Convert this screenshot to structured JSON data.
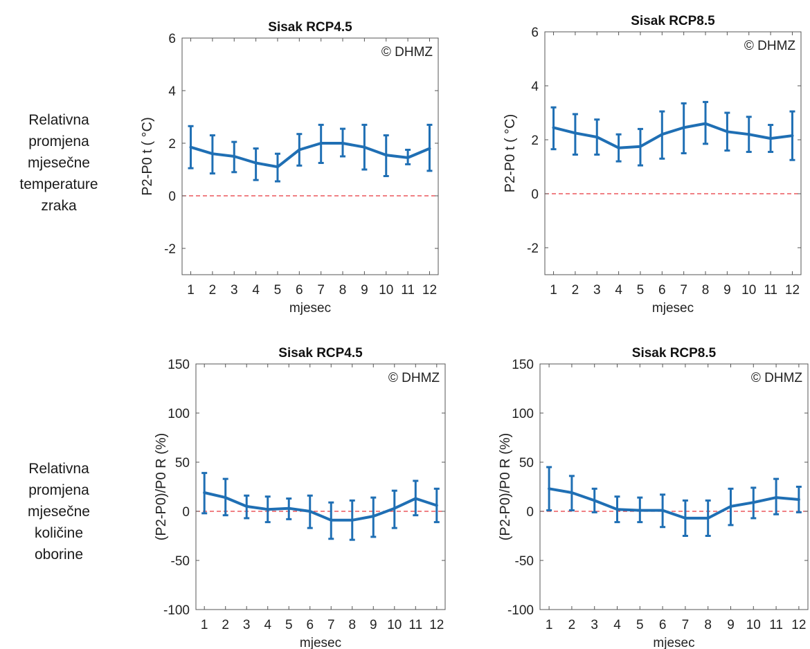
{
  "row_labels": {
    "temperature": "Relativna\npromjena\nmjesečne\ntemperature\nzraka",
    "precipitation": "Relativna\npromjena\nmjesečne\nkoličine\noborine"
  },
  "colors": {
    "series": "#1f6fb4",
    "reference": "#e8353a",
    "axis": "#555555"
  },
  "chart_data": [
    {
      "type": "line",
      "title": "Sisak RCP4.5",
      "credit": "© DHMZ",
      "xlabel": "mjesec",
      "ylabel": "P2-P0 t ( °C)",
      "x": [
        1,
        2,
        3,
        4,
        5,
        6,
        7,
        8,
        9,
        10,
        11,
        12
      ],
      "xticks": [
        "1",
        "2",
        "3",
        "4",
        "5",
        "6",
        "7",
        "8",
        "9",
        "10",
        "11",
        "12"
      ],
      "xlim": [
        0.6,
        12.4
      ],
      "ylim": [
        -3,
        6
      ],
      "yticks": [
        -2,
        0,
        2,
        4,
        6
      ],
      "reference_line": 0,
      "series": [
        {
          "values": [
            1.85,
            1.6,
            1.5,
            1.25,
            1.1,
            1.75,
            2.0,
            2.0,
            1.85,
            1.55,
            1.45,
            1.8
          ],
          "lower": [
            1.05,
            0.85,
            0.9,
            0.6,
            0.55,
            1.15,
            1.25,
            1.5,
            1.0,
            0.75,
            1.2,
            0.95
          ],
          "upper": [
            2.65,
            2.3,
            2.05,
            1.8,
            1.6,
            2.35,
            2.7,
            2.55,
            2.7,
            2.3,
            1.75,
            2.7
          ]
        }
      ]
    },
    {
      "type": "line",
      "title": "Sisak RCP8.5",
      "credit": "© DHMZ",
      "xlabel": "mjesec",
      "ylabel": "P2-P0 t ( °C)",
      "x": [
        1,
        2,
        3,
        4,
        5,
        6,
        7,
        8,
        9,
        10,
        11,
        12
      ],
      "xticks": [
        "1",
        "2",
        "3",
        "4",
        "5",
        "6",
        "7",
        "8",
        "9",
        "10",
        "11",
        "12"
      ],
      "xlim": [
        0.6,
        12.4
      ],
      "ylim": [
        -3,
        6
      ],
      "yticks": [
        -2,
        0,
        2,
        4,
        6
      ],
      "reference_line": 0,
      "series": [
        {
          "values": [
            2.45,
            2.25,
            2.1,
            1.7,
            1.75,
            2.2,
            2.45,
            2.6,
            2.3,
            2.2,
            2.05,
            2.15
          ],
          "lower": [
            1.65,
            1.45,
            1.45,
            1.2,
            1.05,
            1.3,
            1.5,
            1.85,
            1.6,
            1.55,
            1.55,
            1.25
          ],
          "upper": [
            3.2,
            2.95,
            2.75,
            2.2,
            2.4,
            3.05,
            3.35,
            3.4,
            3.0,
            2.85,
            2.55,
            3.05
          ]
        }
      ]
    },
    {
      "type": "line",
      "title": "Sisak RCP4.5",
      "credit": "© DHMZ",
      "xlabel": "mjesec",
      "ylabel": "(P2-P0)/P0 R (%)",
      "x": [
        1,
        2,
        3,
        4,
        5,
        6,
        7,
        8,
        9,
        10,
        11,
        12
      ],
      "xticks": [
        "1",
        "2",
        "3",
        "4",
        "5",
        "6",
        "7",
        "8",
        "9",
        "10",
        "11",
        "12"
      ],
      "xlim": [
        0.6,
        12.4
      ],
      "ylim": [
        -100,
        150
      ],
      "yticks": [
        -100,
        -50,
        0,
        50,
        100,
        150
      ],
      "reference_line": 0,
      "series": [
        {
          "values": [
            19,
            14,
            5,
            2,
            3,
            0,
            -9,
            -9,
            -5,
            3,
            13,
            6
          ],
          "lower": [
            -2,
            -4,
            -7,
            -11,
            -8,
            -17,
            -28,
            -29,
            -26,
            -17,
            -4,
            -11
          ],
          "upper": [
            39,
            33,
            16,
            15,
            13,
            16,
            9,
            11,
            14,
            21,
            31,
            23
          ]
        }
      ]
    },
    {
      "type": "line",
      "title": "Sisak RCP8.5",
      "credit": "© DHMZ",
      "xlabel": "mjesec",
      "ylabel": "(P2-P0)/P0 R (%)",
      "x": [
        1,
        2,
        3,
        4,
        5,
        6,
        7,
        8,
        9,
        10,
        11,
        12
      ],
      "xticks": [
        "1",
        "2",
        "3",
        "4",
        "5",
        "6",
        "7",
        "8",
        "9",
        "10",
        "11",
        "12"
      ],
      "xlim": [
        0.6,
        12.4
      ],
      "ylim": [
        -100,
        150
      ],
      "yticks": [
        -100,
        -50,
        0,
        50,
        100,
        150
      ],
      "reference_line": 0,
      "series": [
        {
          "values": [
            23,
            19,
            11,
            2,
            1,
            1,
            -7,
            -7,
            5,
            9,
            14,
            12
          ],
          "lower": [
            1,
            1,
            -1,
            -11,
            -11,
            -16,
            -25,
            -25,
            -14,
            -7,
            -3,
            -1
          ],
          "upper": [
            45,
            36,
            23,
            15,
            14,
            17,
            11,
            11,
            23,
            24,
            33,
            25
          ]
        }
      ]
    }
  ]
}
